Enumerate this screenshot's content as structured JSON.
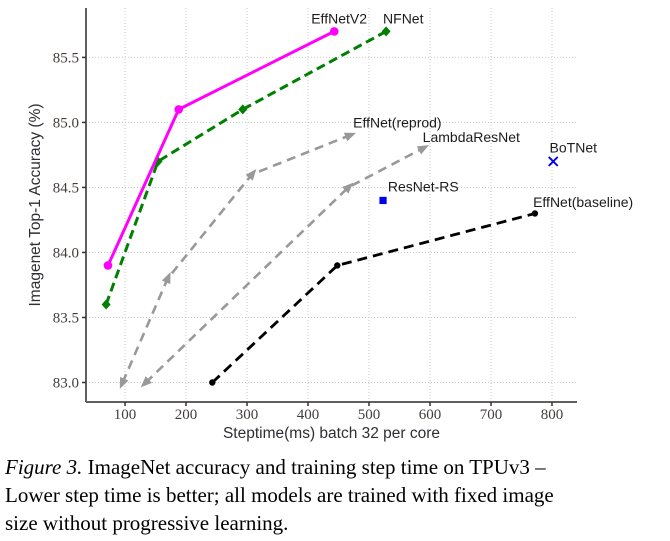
{
  "figure": {
    "caption": {
      "label": "Figure 3.",
      "line1": "ImageNet accuracy and training step time on TPUv3 –",
      "line2": "Lower step time is better; all models are trained with fixed image",
      "line3": "size without progressive learning."
    }
  },
  "chart_data": {
    "type": "line",
    "title": "",
    "xlabel": "Steptime(ms) batch 32 per core",
    "ylabel": "Imagenet Top-1 Accuracy (%)",
    "xlim": [
      36,
      841
    ],
    "ylim": [
      82.85,
      85.88
    ],
    "xticks": [
      100,
      200,
      300,
      400,
      500,
      600,
      700,
      800
    ],
    "yticks": [
      83.0,
      83.5,
      84.0,
      84.5,
      85.0,
      85.5
    ],
    "grid": true,
    "legend": "none",
    "colors": {
      "effnetv2": "#ff00ff",
      "nfnet": "#008000",
      "gray_series": "#999999",
      "baseline": "#000000",
      "blue_points": "#0000ee",
      "gridline": "#cacaca",
      "spine": "#5f5f5f"
    },
    "series": [
      {
        "name": "EffNet(reprod)",
        "color": "#999999",
        "dash": "9,6",
        "width": 2.6,
        "marker": "arrow",
        "msize": 7,
        "points": [
          [
            96,
            83.0
          ],
          [
            170,
            83.8
          ],
          [
            308,
            84.6
          ],
          [
            468,
            84.9
          ]
        ]
      },
      {
        "name": "LambdaResNet",
        "color": "#999999",
        "dash": "9,6",
        "width": 2.6,
        "marker": "arrow",
        "msize": 7,
        "points": [
          [
            134,
            83.0
          ],
          [
            466,
            84.5
          ],
          [
            588,
            84.8
          ]
        ]
      },
      {
        "name": "EffNet(baseline)",
        "color": "#000000",
        "dash": "10,6",
        "width": 2.8,
        "marker": "circle",
        "msize": 3.2,
        "points": [
          [
            243,
            83.0
          ],
          [
            448,
            83.9
          ],
          [
            772,
            84.3
          ]
        ]
      },
      {
        "name": "NFNet",
        "color": "#008000",
        "dash": "9,5",
        "width": 3,
        "marker": "diamond",
        "msize": 5,
        "points": [
          [
            69,
            83.6
          ],
          [
            154,
            84.7
          ],
          [
            293,
            85.1
          ],
          [
            528,
            85.7
          ]
        ]
      },
      {
        "name": "EffNetV2",
        "color": "#ff00ff",
        "dash": "",
        "width": 3,
        "marker": "circle",
        "msize": 4.3,
        "points": [
          [
            72,
            83.9
          ],
          [
            188,
            85.1
          ],
          [
            443,
            85.7
          ]
        ]
      },
      {
        "name": "ResNet-RS",
        "color": "#0000ee",
        "dash": "",
        "width": 0,
        "marker": "square",
        "msize": 3.6,
        "points": [
          [
            523,
            84.4
          ]
        ]
      },
      {
        "name": "BoTNet",
        "color": "#0000ee",
        "dash": "",
        "width": 0,
        "marker": "x",
        "msize": 4.5,
        "points": [
          [
            802,
            84.7
          ]
        ]
      }
    ],
    "annotations": [
      {
        "text": "EffNetV2",
        "x": 451,
        "y": 85.76,
        "anchor": "middle"
      },
      {
        "text": "NFNet",
        "x": 523,
        "y": 85.76,
        "anchor": "start"
      },
      {
        "text": "EffNet(reprod)",
        "x": 474,
        "y": 84.96,
        "anchor": "start"
      },
      {
        "text": "LambdaResNet",
        "x": 588,
        "y": 84.85,
        "anchor": "start"
      },
      {
        "text": "BoTNet",
        "x": 796,
        "y": 84.77,
        "anchor": "start"
      },
      {
        "text": "ResNet-RS",
        "x": 531,
        "y": 84.47,
        "anchor": "start"
      },
      {
        "text": "EffNet(baseline)",
        "x": 769,
        "y": 84.35,
        "anchor": "start"
      }
    ]
  }
}
